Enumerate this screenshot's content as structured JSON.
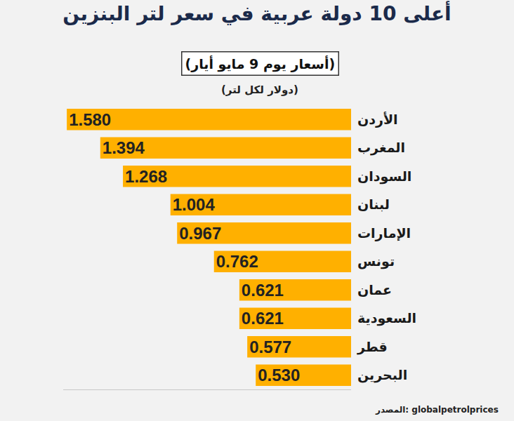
{
  "chart_data": {
    "type": "bar",
    "orientation": "horizontal",
    "title": "أعلى 10 دولة عربية في سعر لتر البنزين",
    "subtitle": "(أسعار يوم 9 مايو أيار)",
    "unit": "(دولار لكل لتر)",
    "source": "المصدر: globalpetrolprices",
    "categories": [
      "الأردن",
      "المغرب",
      "السودان",
      "لبنان",
      "الإمارات",
      "تونس",
      "عمان",
      "السعودية",
      "قطر",
      "البحرين"
    ],
    "values": [
      1.58,
      1.394,
      1.268,
      1.004,
      0.967,
      0.762,
      0.621,
      0.621,
      0.577,
      0.53
    ],
    "value_labels": [
      "1.580",
      "1.394",
      "1.268",
      "1.004",
      "0.967",
      "0.762",
      "0.621",
      "0.621",
      "0.577",
      "0.530"
    ],
    "color": "#ffb000",
    "xlim": [
      0,
      1.6
    ],
    "xticks": [],
    "grid": false,
    "data_labels": true,
    "tick_labels": "y"
  }
}
